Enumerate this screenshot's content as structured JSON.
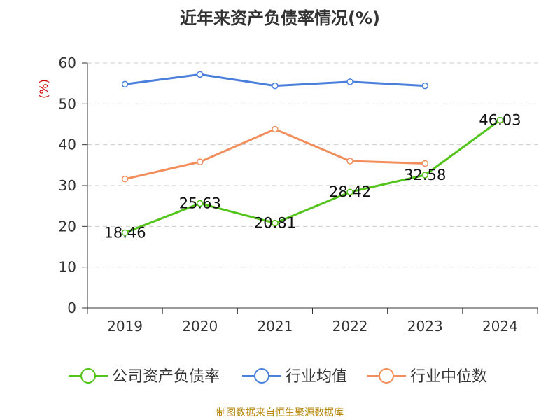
{
  "chart_data": {
    "type": "line",
    "title": "近年来资产负债率情况(%)",
    "ylabel": "(%)",
    "xlabel": "",
    "categories": [
      "2019",
      "2020",
      "2021",
      "2022",
      "2023",
      "2024"
    ],
    "ylim": [
      0,
      60
    ],
    "yticks": [
      0,
      10,
      20,
      30,
      40,
      50,
      60
    ],
    "grid": true,
    "legend_position": "bottom",
    "series": [
      {
        "name": "公司资产负债率",
        "color": "#52c41a",
        "values": [
          18.46,
          25.63,
          20.81,
          28.42,
          32.58,
          46.03
        ],
        "labels": [
          "18.46",
          "25.63",
          "20.81",
          "28.42",
          "32.58",
          "46.03"
        ]
      },
      {
        "name": "行业均值",
        "color": "#4a7fdb",
        "values": [
          54.8,
          57.2,
          54.4,
          55.4,
          54.4,
          null
        ]
      },
      {
        "name": "行业中位数",
        "color": "#f28e5b",
        "values": [
          31.6,
          35.8,
          43.8,
          36.0,
          35.4,
          null
        ]
      }
    ]
  },
  "source": "制图数据来自恒生聚源数据库",
  "colors": {
    "axis": "#333333",
    "grid": "#cccccc",
    "ylabel": "#cc0000"
  }
}
